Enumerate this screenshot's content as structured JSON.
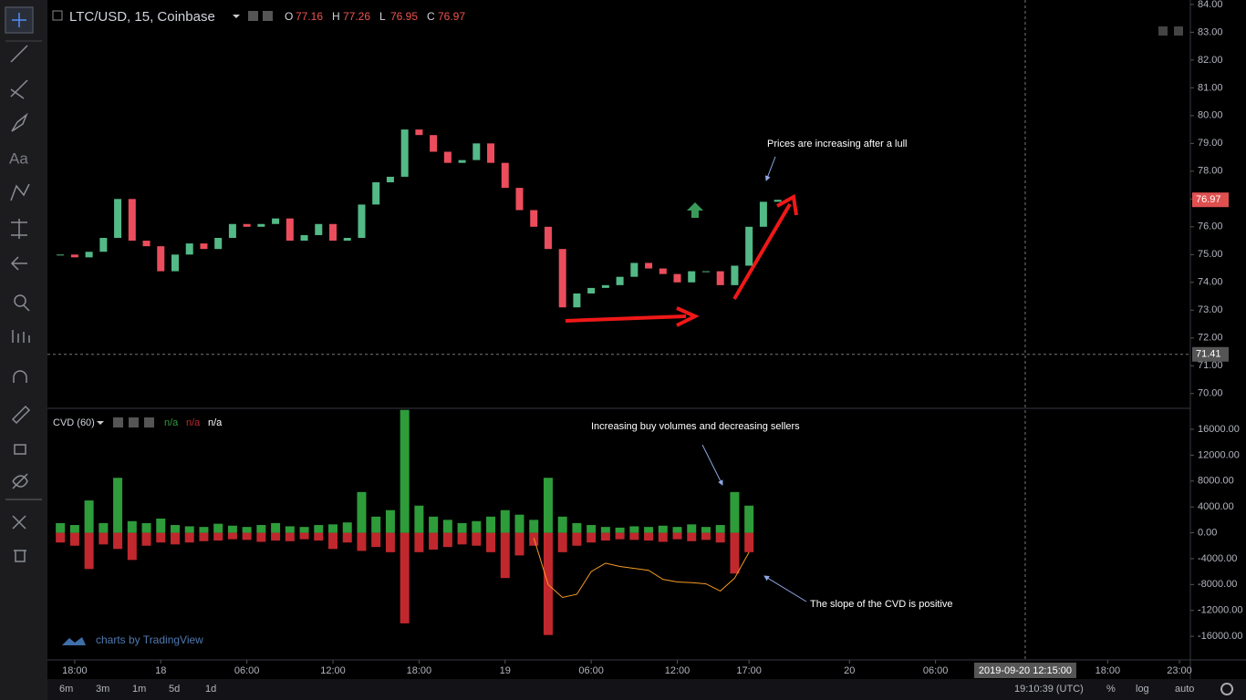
{
  "header": {
    "symbol": "LTC/USD, 15, Coinbase",
    "ohlc": [
      {
        "key": "O",
        "value": 77.16
      },
      {
        "key": "H",
        "value": 77.26
      },
      {
        "key": "L",
        "value": 76.95
      },
      {
        "key": "C",
        "value": 76.97
      }
    ]
  },
  "indicator": {
    "name": "CVD (60)",
    "values": [
      "n/a",
      "n/a",
      "n/a"
    ]
  },
  "watermark": "charts by TradingView",
  "toolbar": {
    "text_tool": "Aa"
  },
  "bottom_bar": {
    "ranges": [
      "6m",
      "3m",
      "1m",
      "5d",
      "1d"
    ],
    "clock": "19:10:39 (UTC)",
    "options": [
      "%",
      "log",
      "auto"
    ]
  },
  "chart_data": [
    {
      "type": "candlestick",
      "x": [
        17,
        18,
        19,
        20,
        21,
        22,
        23,
        24,
        25,
        26,
        27,
        28,
        29,
        30,
        31,
        32,
        33,
        34,
        35,
        36,
        37,
        38,
        39,
        40,
        41,
        42,
        43,
        44,
        45,
        46,
        47,
        48,
        49,
        50,
        51,
        52,
        53,
        54,
        55,
        56,
        57,
        58,
        59,
        60,
        61,
        62,
        63,
        64,
        65,
        66,
        67
      ],
      "values": [
        75.0,
        74.9,
        75.1,
        75.6,
        77.0,
        75.5,
        75.3,
        74.4,
        75.0,
        75.4,
        75.2,
        75.6,
        76.1,
        76.0,
        76.1,
        76.3,
        75.5,
        75.7,
        76.1,
        75.5,
        75.6,
        76.8,
        77.6,
        77.8,
        79.5,
        79.3,
        78.7,
        78.3,
        78.4,
        79.0,
        78.3,
        77.4,
        76.6,
        76.0,
        75.2,
        73.1,
        73.6,
        73.8,
        73.9,
        74.2,
        74.7,
        74.5,
        74.3,
        74.0,
        74.4,
        74.4,
        73.9,
        74.6,
        76.0,
        76.9,
        76.97
      ],
      "up_color": "#53b987",
      "down_color": "#eb4d5c",
      "xlim": [
        16.1,
        95.76
      ],
      "xticks": [
        {
          "value": 18,
          "label": "18:00"
        },
        {
          "value": 24,
          "label": "18"
        },
        {
          "value": 30,
          "label": "06:00"
        },
        {
          "value": 36,
          "label": "12:00"
        },
        {
          "value": 42,
          "label": "18:00"
        },
        {
          "value": 48,
          "label": "19"
        },
        {
          "value": 54,
          "label": "06:00"
        },
        {
          "value": 60,
          "label": "12:00"
        },
        {
          "value": 65,
          "label": "17:00"
        },
        {
          "value": 72,
          "label": "20"
        },
        {
          "value": 78,
          "label": "06:00"
        },
        {
          "value": 90,
          "label": "18:00"
        },
        {
          "value": 95,
          "label": "23:00"
        }
      ],
      "ylim": [
        69.5,
        84.16
      ],
      "yticks": [
        {
          "value": 70,
          "label": "70.00"
        },
        {
          "value": 71,
          "label": "71.00"
        },
        {
          "value": 72,
          "label": "72.00"
        },
        {
          "value": 73,
          "label": "73.00"
        },
        {
          "value": 74,
          "label": "74.00"
        },
        {
          "value": 75,
          "label": "75.00"
        },
        {
          "value": 76,
          "label": "76.00"
        },
        {
          "value": 77,
          "label": "77.00"
        },
        {
          "value": 78,
          "label": "78.00"
        },
        {
          "value": 79,
          "label": "79.00"
        },
        {
          "value": 80,
          "label": "80.00"
        },
        {
          "value": 81,
          "label": "81.00"
        },
        {
          "value": 82,
          "label": "82.00"
        },
        {
          "value": 83,
          "label": "83.00"
        },
        {
          "value": 84,
          "label": "84.00"
        }
      ],
      "last_price": 76.97,
      "crosshair": {
        "price": 71.41,
        "time": {
          "value": 84.25,
          "label": "2019-09-20 12:15:00"
        }
      },
      "annotations": [
        "Prices are increasing after a lull"
      ],
      "grid": false
    },
    {
      "type": "histogram",
      "x": [
        17,
        18,
        19,
        20,
        21,
        22,
        23,
        24,
        25,
        26,
        27,
        28,
        29,
        30,
        31,
        32,
        33,
        34,
        35,
        36,
        37,
        38,
        39,
        40,
        41,
        42,
        43,
        44,
        45,
        46,
        47,
        48,
        49,
        50,
        51,
        52,
        53,
        54,
        55,
        56,
        57,
        58,
        59,
        60,
        61,
        62,
        63,
        64,
        65,
        66,
        67
      ],
      "series": [
        {
          "color": "#2e9c3a",
          "values": [
            1500,
            1200,
            5000,
            1500,
            8500,
            1800,
            1500,
            2200,
            1200,
            1000,
            900,
            1400,
            1100,
            900,
            1200,
            1500,
            1000,
            900,
            1200,
            1300,
            1600,
            6300,
            2500,
            3500,
            19000,
            4200,
            2500,
            2000,
            1500,
            1800,
            2500,
            3500,
            2800,
            2000,
            8500,
            2500,
            1500,
            1200,
            900,
            800,
            1000,
            900,
            1100,
            900,
            1300,
            900,
            1200,
            6300,
            4200,
            null,
            null
          ]
        },
        {
          "color": "#c0282e",
          "values": [
            -1500,
            -2000,
            -5600,
            -1800,
            -2500,
            -4200,
            -2000,
            -1500,
            -1800,
            -1500,
            -1300,
            -1200,
            -1000,
            -1100,
            -1400,
            -1200,
            -1300,
            -1000,
            -1200,
            -2500,
            -1500,
            -2800,
            -2200,
            -3000,
            -14000,
            -3000,
            -2600,
            -2200,
            -1800,
            -2000,
            -3000,
            -7000,
            -3500,
            -2000,
            -15800,
            -3000,
            -2000,
            -1500,
            -1200,
            -1000,
            -1100,
            -1200,
            -1400,
            -1000,
            -1300,
            -1100,
            -1500,
            -6300,
            -3000,
            null,
            null
          ]
        },
        {
          "type": "line",
          "color": "#f59b23",
          "values": [
            null,
            null,
            null,
            null,
            null,
            null,
            null,
            null,
            null,
            null,
            null,
            null,
            null,
            null,
            null,
            null,
            null,
            null,
            null,
            null,
            null,
            null,
            null,
            null,
            null,
            null,
            null,
            null,
            null,
            null,
            null,
            null,
            null,
            -800,
            -8000,
            -10000,
            -9500,
            -6000,
            -4700,
            -5200,
            -5500,
            -5800,
            -7200,
            -7600,
            -7700,
            -7900,
            -9000,
            -7000,
            -3000,
            null,
            null
          ]
        }
      ],
      "ylim": [
        -19650,
        19100
      ],
      "yticks": [
        {
          "value": 16000,
          "label": "16000.00"
        },
        {
          "value": 12000,
          "label": "12000.00"
        },
        {
          "value": 8000,
          "label": "8000.00"
        },
        {
          "value": 4000,
          "label": "4000.00"
        },
        {
          "value": 0,
          "label": "0.00"
        },
        {
          "value": -4000,
          "label": "-4000.00"
        },
        {
          "value": -8000,
          "label": "-8000.00"
        },
        {
          "value": -12000,
          "label": "-12000.00"
        },
        {
          "value": -16000,
          "label": "-16000.00"
        }
      ],
      "annotations": [
        "Increasing buy volumes and decreasing sellers",
        "The slope of the CVD is positive"
      ],
      "grid": false
    }
  ]
}
